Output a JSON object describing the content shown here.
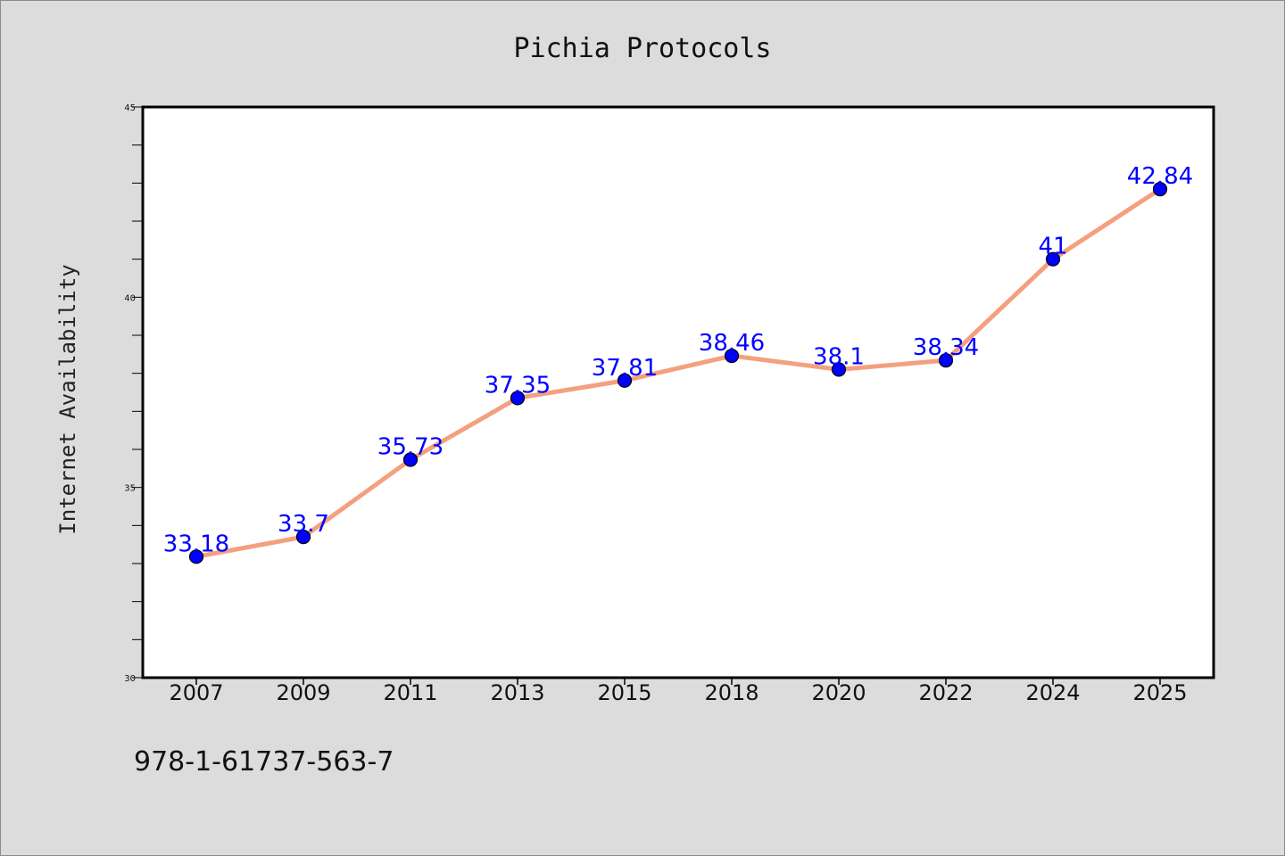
{
  "chart_data": {
    "type": "line",
    "title": "Pichia Protocols",
    "xlabel": "",
    "ylabel": "Internet Availability",
    "categories": [
      "2007",
      "2009",
      "2011",
      "2013",
      "2015",
      "2018",
      "2020",
      "2022",
      "2024",
      "2025"
    ],
    "series": [
      {
        "values": [
          33.18,
          33.7,
          35.73,
          37.35,
          37.81,
          38.46,
          38.1,
          38.34,
          41,
          42.84
        ],
        "data_labels": [
          "33.18",
          "33.7",
          "35.73",
          "37.35",
          "37.81",
          "38.46",
          "38.1",
          "38.34",
          "41",
          "42.84"
        ]
      }
    ],
    "ylim": [
      30,
      45
    ],
    "yticks": [
      "30",
      "35",
      "40",
      "45"
    ],
    "grid": false,
    "line_color": "#f4a07f",
    "marker_color": "#0000ff",
    "label_color": "#0000ff",
    "background_color": "#dcdcdc",
    "plot_background_color": "#ffffff"
  },
  "footer_text": "978-1-61737-563-7"
}
